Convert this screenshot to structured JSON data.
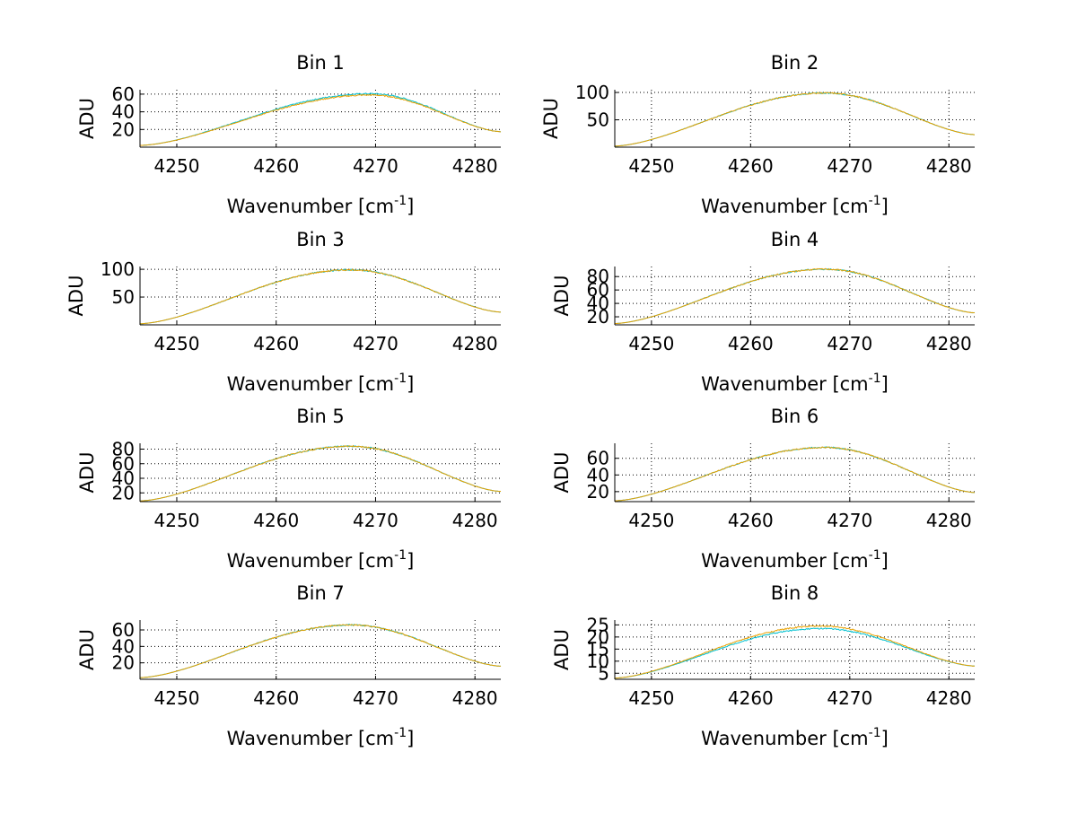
{
  "chart_data": [
    {
      "type": "line",
      "title": "Bin 1",
      "xlabel": "Wavenumber [cm",
      "xlabel_sup": "-1",
      "xlabel_end": "]",
      "ylabel": "ADU",
      "xlim": [
        4246.3,
        4282.6
      ],
      "ylim": [
        0,
        65
      ],
      "xticks": [
        4250,
        4260,
        4270,
        4280
      ],
      "yticks": [
        20,
        40,
        60
      ],
      "grid": "dotted",
      "series": [
        {
          "color": "#00c0d0",
          "peak_x": 4269.5,
          "peak": 60.5,
          "edge_left": 2,
          "edge_right": 17.5
        },
        {
          "color": "#e8a000",
          "peak_x": 4269.5,
          "peak": 59,
          "edge_left": 2,
          "edge_right": 17.5
        }
      ]
    },
    {
      "type": "line",
      "title": "Bin 2",
      "xlabel": "Wavenumber [cm",
      "xlabel_sup": "-1",
      "xlabel_end": "]",
      "ylabel": "ADU",
      "xlim": [
        4246.3,
        4282.6
      ],
      "ylim": [
        0,
        105
      ],
      "xticks": [
        4250,
        4260,
        4270,
        4280
      ],
      "yticks": [
        50,
        100
      ],
      "grid": "dotted",
      "series": [
        {
          "color": "#00c0d0",
          "peak_x": 4267.5,
          "peak": 99,
          "edge_left": 2,
          "edge_right": 23
        },
        {
          "color": "#e8a000",
          "peak_x": 4267.5,
          "peak": 99,
          "edge_left": 2,
          "edge_right": 23
        }
      ]
    },
    {
      "type": "line",
      "title": "Bin 3",
      "xlabel": "Wavenumber [cm",
      "xlabel_sup": "-1",
      "xlabel_end": "]",
      "ylabel": "ADU",
      "xlim": [
        4246.3,
        4282.6
      ],
      "ylim": [
        0,
        105
      ],
      "xticks": [
        4250,
        4260,
        4270,
        4280
      ],
      "yticks": [
        50,
        100
      ],
      "grid": "dotted",
      "series": [
        {
          "color": "#00c0d0",
          "peak_x": 4267.5,
          "peak": 99,
          "edge_left": 2,
          "edge_right": 23
        },
        {
          "color": "#e8a000",
          "peak_x": 4267.5,
          "peak": 99,
          "edge_left": 2,
          "edge_right": 23
        }
      ]
    },
    {
      "type": "line",
      "title": "Bin 4",
      "xlabel": "Wavenumber [cm",
      "xlabel_sup": "-1",
      "xlabel_end": "]",
      "ylabel": "ADU",
      "xlim": [
        4246.3,
        4282.6
      ],
      "ylim": [
        8,
        95
      ],
      "xticks": [
        4250,
        4260,
        4270,
        4280
      ],
      "yticks": [
        20,
        40,
        60,
        80
      ],
      "grid": "dotted",
      "series": [
        {
          "color": "#00c0d0",
          "peak_x": 4267.5,
          "peak": 91,
          "edge_left": 10,
          "edge_right": 26
        },
        {
          "color": "#e8a000",
          "peak_x": 4267.5,
          "peak": 91,
          "edge_left": 10,
          "edge_right": 26
        }
      ]
    },
    {
      "type": "line",
      "title": "Bin 5",
      "xlabel": "Wavenumber [cm",
      "xlabel_sup": "-1",
      "xlabel_end": "]",
      "ylabel": "ADU",
      "xlim": [
        4246.3,
        4282.6
      ],
      "ylim": [
        8,
        88
      ],
      "xticks": [
        4250,
        4260,
        4270,
        4280
      ],
      "yticks": [
        20,
        40,
        60,
        80
      ],
      "grid": "dotted",
      "series": [
        {
          "color": "#00c0d0",
          "peak_x": 4267.5,
          "peak": 84,
          "edge_left": 9,
          "edge_right": 22
        },
        {
          "color": "#e8a000",
          "peak_x": 4267.5,
          "peak": 84,
          "edge_left": 9,
          "edge_right": 22
        }
      ]
    },
    {
      "type": "line",
      "title": "Bin 6",
      "xlabel": "Wavenumber [cm",
      "xlabel_sup": "-1",
      "xlabel_end": "]",
      "ylabel": "ADU",
      "xlim": [
        4246.3,
        4282.6
      ],
      "ylim": [
        8,
        78
      ],
      "xticks": [
        4250,
        4260,
        4270,
        4280
      ],
      "yticks": [
        20,
        40,
        60
      ],
      "grid": "dotted",
      "series": [
        {
          "color": "#00c0d0",
          "peak_x": 4267.5,
          "peak": 73,
          "edge_left": 9,
          "edge_right": 19
        },
        {
          "color": "#e8a000",
          "peak_x": 4267.5,
          "peak": 73,
          "edge_left": 9,
          "edge_right": 19
        }
      ]
    },
    {
      "type": "line",
      "title": "Bin 7",
      "xlabel": "Wavenumber [cm",
      "xlabel_sup": "-1",
      "xlabel_end": "]",
      "ylabel": "ADU",
      "xlim": [
        4246.3,
        4282.6
      ],
      "ylim": [
        0,
        72
      ],
      "xticks": [
        4250,
        4260,
        4270,
        4280
      ],
      "yticks": [
        20,
        40,
        60
      ],
      "grid": "dotted",
      "series": [
        {
          "color": "#00c0d0",
          "peak_x": 4267.5,
          "peak": 66,
          "edge_left": 2,
          "edge_right": 16
        },
        {
          "color": "#e8a000",
          "peak_x": 4267.5,
          "peak": 66,
          "edge_left": 2,
          "edge_right": 16
        }
      ]
    },
    {
      "type": "line",
      "title": "Bin 8",
      "xlabel": "Wavenumber [cm",
      "xlabel_sup": "-1",
      "xlabel_end": "]",
      "ylabel": "ADU",
      "xlim": [
        4246.3,
        4282.6
      ],
      "ylim": [
        2.5,
        27
      ],
      "xticks": [
        4250,
        4260,
        4270,
        4280
      ],
      "yticks": [
        5,
        10,
        15,
        20,
        25
      ],
      "grid": "dotted",
      "series": [
        {
          "color": "#00c0d0",
          "peak_x": 4267,
          "peak": 23.5,
          "edge_left": 3,
          "edge_right": 8
        },
        {
          "color": "#e8a000",
          "peak_x": 4267,
          "peak": 24.5,
          "edge_left": 3,
          "edge_right": 8
        }
      ]
    }
  ]
}
